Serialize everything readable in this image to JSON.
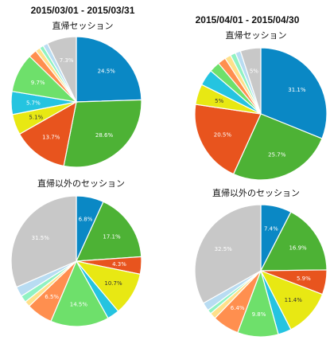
{
  "headers": {
    "left": "2015/03/01 - 2015/03/31",
    "right": "2015/04/01 - 2015/04/30"
  },
  "chart_data": [
    {
      "type": "pie",
      "title": "直帰セッション",
      "period": "2015/03/01 - 2015/03/31",
      "colors": [
        "#0a88c5",
        "#4db235",
        "#e8541e",
        "#e8e813",
        "#25c4e0",
        "#6ee06b",
        "#ff8f4f",
        "#ffe08a",
        "#90f2c2",
        "#b8dcf2",
        "#c8c8c8"
      ],
      "values": [
        24.5,
        28.6,
        13.7,
        5.1,
        5.7,
        9.7,
        2.0,
        1.2,
        1.0,
        1.2,
        7.3
      ],
      "labels": [
        "24.5%",
        "28.6%",
        "13.7%",
        "5.1%",
        "5.7%",
        "9.7%",
        "",
        "",
        "",
        "",
        "7.3%"
      ]
    },
    {
      "type": "pie",
      "title": "直帰セッション",
      "period": "2015/04/01 - 2015/04/30",
      "colors": [
        "#0a88c5",
        "#4db235",
        "#e8541e",
        "#e8e813",
        "#25c4e0",
        "#6ee06b",
        "#ff8f4f",
        "#ffe08a",
        "#90f2c2",
        "#b8dcf2",
        "#c8c8c8"
      ],
      "values": [
        31.1,
        25.7,
        20.5,
        5.0,
        4.0,
        2.6,
        2.0,
        1.5,
        1.3,
        1.3,
        5.0
      ],
      "labels": [
        "31.1%",
        "25.7%",
        "20.5%",
        "5%",
        "",
        "",
        "",
        "",
        "",
        "",
        "5%"
      ]
    },
    {
      "type": "pie",
      "title": "直帰以外のセッション",
      "period": "2015/03/01 - 2015/03/31",
      "colors": [
        "#0a88c5",
        "#4db235",
        "#e8541e",
        "#e8e813",
        "#25c4e0",
        "#6ee06b",
        "#ff8f4f",
        "#ffe08a",
        "#90f2c2",
        "#b8dcf2",
        "#c8c8c8"
      ],
      "values": [
        6.8,
        17.1,
        4.3,
        10.7,
        3.0,
        14.5,
        6.5,
        1.4,
        1.7,
        2.5,
        31.5
      ],
      "labels": [
        "6.8%",
        "17.1%",
        "4.3%",
        "10.7%",
        "",
        "14.5%",
        "6.5%",
        "",
        "",
        "",
        "31.5%"
      ]
    },
    {
      "type": "pie",
      "title": "直帰以外のセッション",
      "period": "2015/04/01 - 2015/04/30",
      "colors": [
        "#0a88c5",
        "#4db235",
        "#e8541e",
        "#e8e813",
        "#25c4e0",
        "#6ee06b",
        "#ff8f4f",
        "#ffe08a",
        "#90f2c2",
        "#b8dcf2",
        "#c8c8c8"
      ],
      "values": [
        7.4,
        16.9,
        5.9,
        11.4,
        3.2,
        9.8,
        6.4,
        1.5,
        1.0,
        2.0,
        32.5
      ],
      "labels": [
        "7.4%",
        "16.9%",
        "5.9%",
        "11.4%",
        "",
        "9.8%",
        "6.4%",
        "",
        "",
        "",
        "32.5%"
      ]
    }
  ]
}
